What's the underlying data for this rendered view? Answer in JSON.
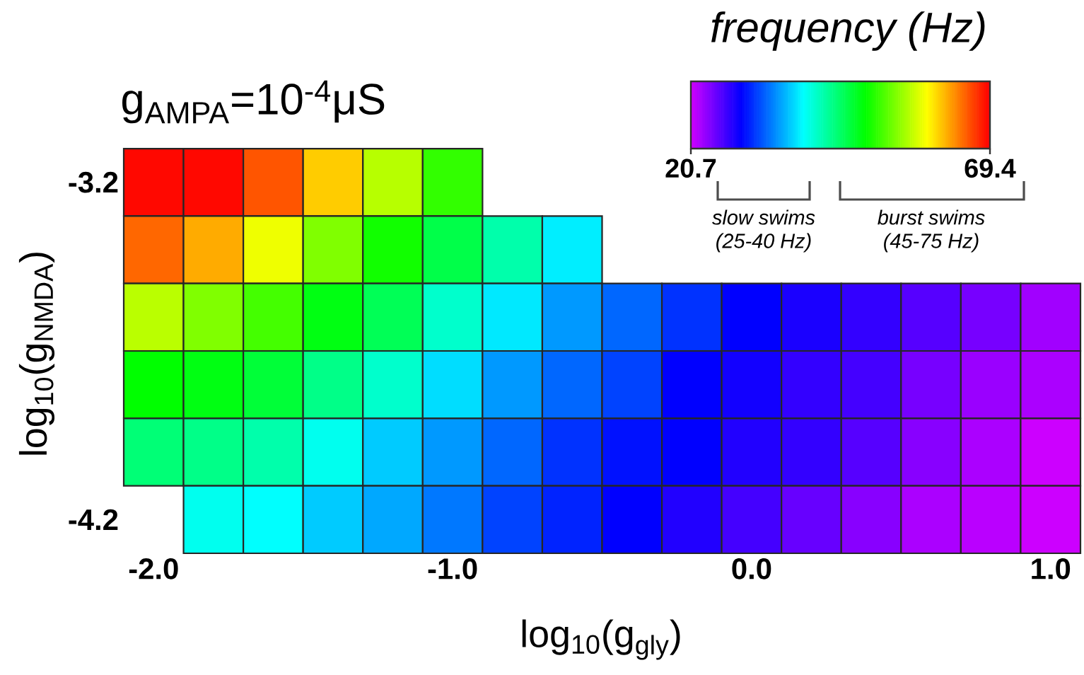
{
  "chart_data": {
    "type": "heatmap",
    "title": "g$_{AMPA}$=10$^{-4}$μS",
    "xlabel": "log$_{10}$(g$_{gly}$)",
    "ylabel": "log$_{10}$(g$_{NMDA}$)",
    "clabel": "frequency (Hz)",
    "categories": [
      "-2.0",
      null,
      null,
      null,
      null,
      "-1.0",
      null,
      null,
      null,
      null,
      "0.0",
      null,
      null,
      null,
      null,
      "1.0"
    ],
    "y_categories": [
      "-3.2",
      null,
      null,
      null,
      null,
      "-4.2"
    ],
    "cells": [
      [
        69.1,
        69.1,
        66.0,
        61.3,
        56.4,
        51.1,
        null,
        null,
        null,
        null,
        null,
        null,
        null,
        null,
        null,
        null
      ],
      [
        65.3,
        62.6,
        58.6,
        54.2,
        49.8,
        46.2,
        42.3,
        38.3,
        null,
        null,
        null,
        null,
        null,
        null,
        null,
        null
      ],
      [
        56.5,
        54.2,
        51.8,
        48.4,
        45.7,
        41.0,
        38.1,
        34.9,
        32.9,
        30.8,
        28.8,
        27.8,
        26.8,
        25.4,
        24.1,
        22.4
      ],
      [
        49.1,
        48.4,
        46.9,
        43.7,
        41.0,
        37.6,
        34.9,
        32.9,
        31.5,
        28.8,
        28.1,
        26.8,
        26.1,
        24.1,
        22.7,
        22.0
      ],
      [
        44.4,
        43.7,
        42.3,
        39.6,
        36.9,
        34.9,
        32.9,
        30.8,
        29.5,
        28.8,
        27.5,
        26.8,
        25.4,
        23.4,
        22.0,
        20.7
      ],
      [
        null,
        39.6,
        39.0,
        36.9,
        35.5,
        33.6,
        31.5,
        30.2,
        28.8,
        27.5,
        26.1,
        24.7,
        23.4,
        22.0,
        21.4,
        20.7
      ]
    ],
    "clim": [
      20.7,
      69.4
    ],
    "cticks": [
      20.7,
      69.4
    ],
    "annotations": [
      "slow swims",
      "(25-40 Hz)",
      "burst swims",
      "(45-75 Hz)"
    ]
  }
}
